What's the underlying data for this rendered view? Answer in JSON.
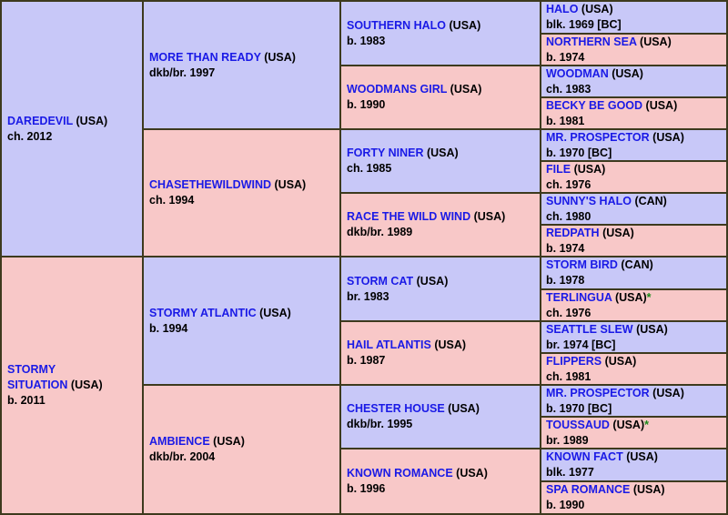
{
  "pedigree": {
    "sire": {
      "name": "DAREDEVIL",
      "country": "(USA)",
      "info": "ch. 2012",
      "sire": {
        "name": "MORE THAN READY",
        "country": "(USA)",
        "info": "dkb/br. 1997",
        "sire": {
          "name": "SOUTHERN HALO",
          "country": "(USA)",
          "info": "b. 1983",
          "sire": {
            "name": "HALO",
            "country": "(USA)",
            "info": "blk. 1969 [BC]"
          },
          "dam": {
            "name": "NORTHERN SEA",
            "country": "(USA)",
            "info": "b. 1974"
          }
        },
        "dam": {
          "name": "WOODMANS GIRL",
          "country": "(USA)",
          "info": "b. 1990",
          "sire": {
            "name": "WOODMAN",
            "country": "(USA)",
            "info": "ch. 1983"
          },
          "dam": {
            "name": "BECKY BE GOOD",
            "country": "(USA)",
            "info": "b. 1981"
          }
        }
      },
      "dam": {
        "name": "CHASETHEWILDWIND",
        "country": "(USA)",
        "info": "ch. 1994",
        "sire": {
          "name": "FORTY NINER",
          "country": "(USA)",
          "info": "ch. 1985",
          "sire": {
            "name": "MR. PROSPECTOR",
            "country": "(USA)",
            "info": "b. 1970 [BC]"
          },
          "dam": {
            "name": "FILE",
            "country": "(USA)",
            "info": "ch. 1976"
          }
        },
        "dam": {
          "name": "RACE THE WILD WIND",
          "country": "(USA)",
          "info": "dkb/br. 1989",
          "sire": {
            "name": "SUNNY'S HALO",
            "country": "(CAN)",
            "info": "ch. 1980"
          },
          "dam": {
            "name": "REDPATH",
            "country": "(USA)",
            "info": "b. 1974"
          }
        }
      }
    },
    "dam": {
      "name_line1": "STORMY",
      "name_line2": "SITUATION",
      "country": "(USA)",
      "info": "b. 2011",
      "sire": {
        "name": "STORMY ATLANTIC",
        "country": "(USA)",
        "info": "b. 1994",
        "sire": {
          "name": "STORM CAT",
          "country": "(USA)",
          "info": "br. 1983",
          "sire": {
            "name": "STORM BIRD",
            "country": "(CAN)",
            "info": "b. 1978"
          },
          "dam": {
            "name": "TERLINGUA",
            "country": "(USA)",
            "star": "*",
            "info": "ch. 1976"
          }
        },
        "dam": {
          "name": "HAIL ATLANTIS",
          "country": "(USA)",
          "info": "b. 1987",
          "sire": {
            "name": "SEATTLE SLEW",
            "country": "(USA)",
            "info": "br. 1974 [BC]"
          },
          "dam": {
            "name": "FLIPPERS",
            "country": "(USA)",
            "info": "ch. 1981"
          }
        }
      },
      "dam": {
        "name": "AMBIENCE",
        "country": "(USA)",
        "info": "dkb/br. 2004",
        "sire": {
          "name": "CHESTER HOUSE",
          "country": "(USA)",
          "info": "dkb/br. 1995",
          "sire": {
            "name": "MR. PROSPECTOR",
            "country": "(USA)",
            "info": "b. 1970 [BC]"
          },
          "dam": {
            "name": "TOUSSAUD",
            "country": "(USA)",
            "star": "*",
            "info": "br. 1989"
          }
        },
        "dam": {
          "name": "KNOWN ROMANCE",
          "country": "(USA)",
          "info": "b. 1996",
          "sire": {
            "name": "KNOWN FACT",
            "country": "(USA)",
            "info": "blk. 1977"
          },
          "dam": {
            "name": "SPA ROMANCE",
            "country": "(USA)",
            "info": "b. 1990"
          }
        }
      }
    }
  }
}
